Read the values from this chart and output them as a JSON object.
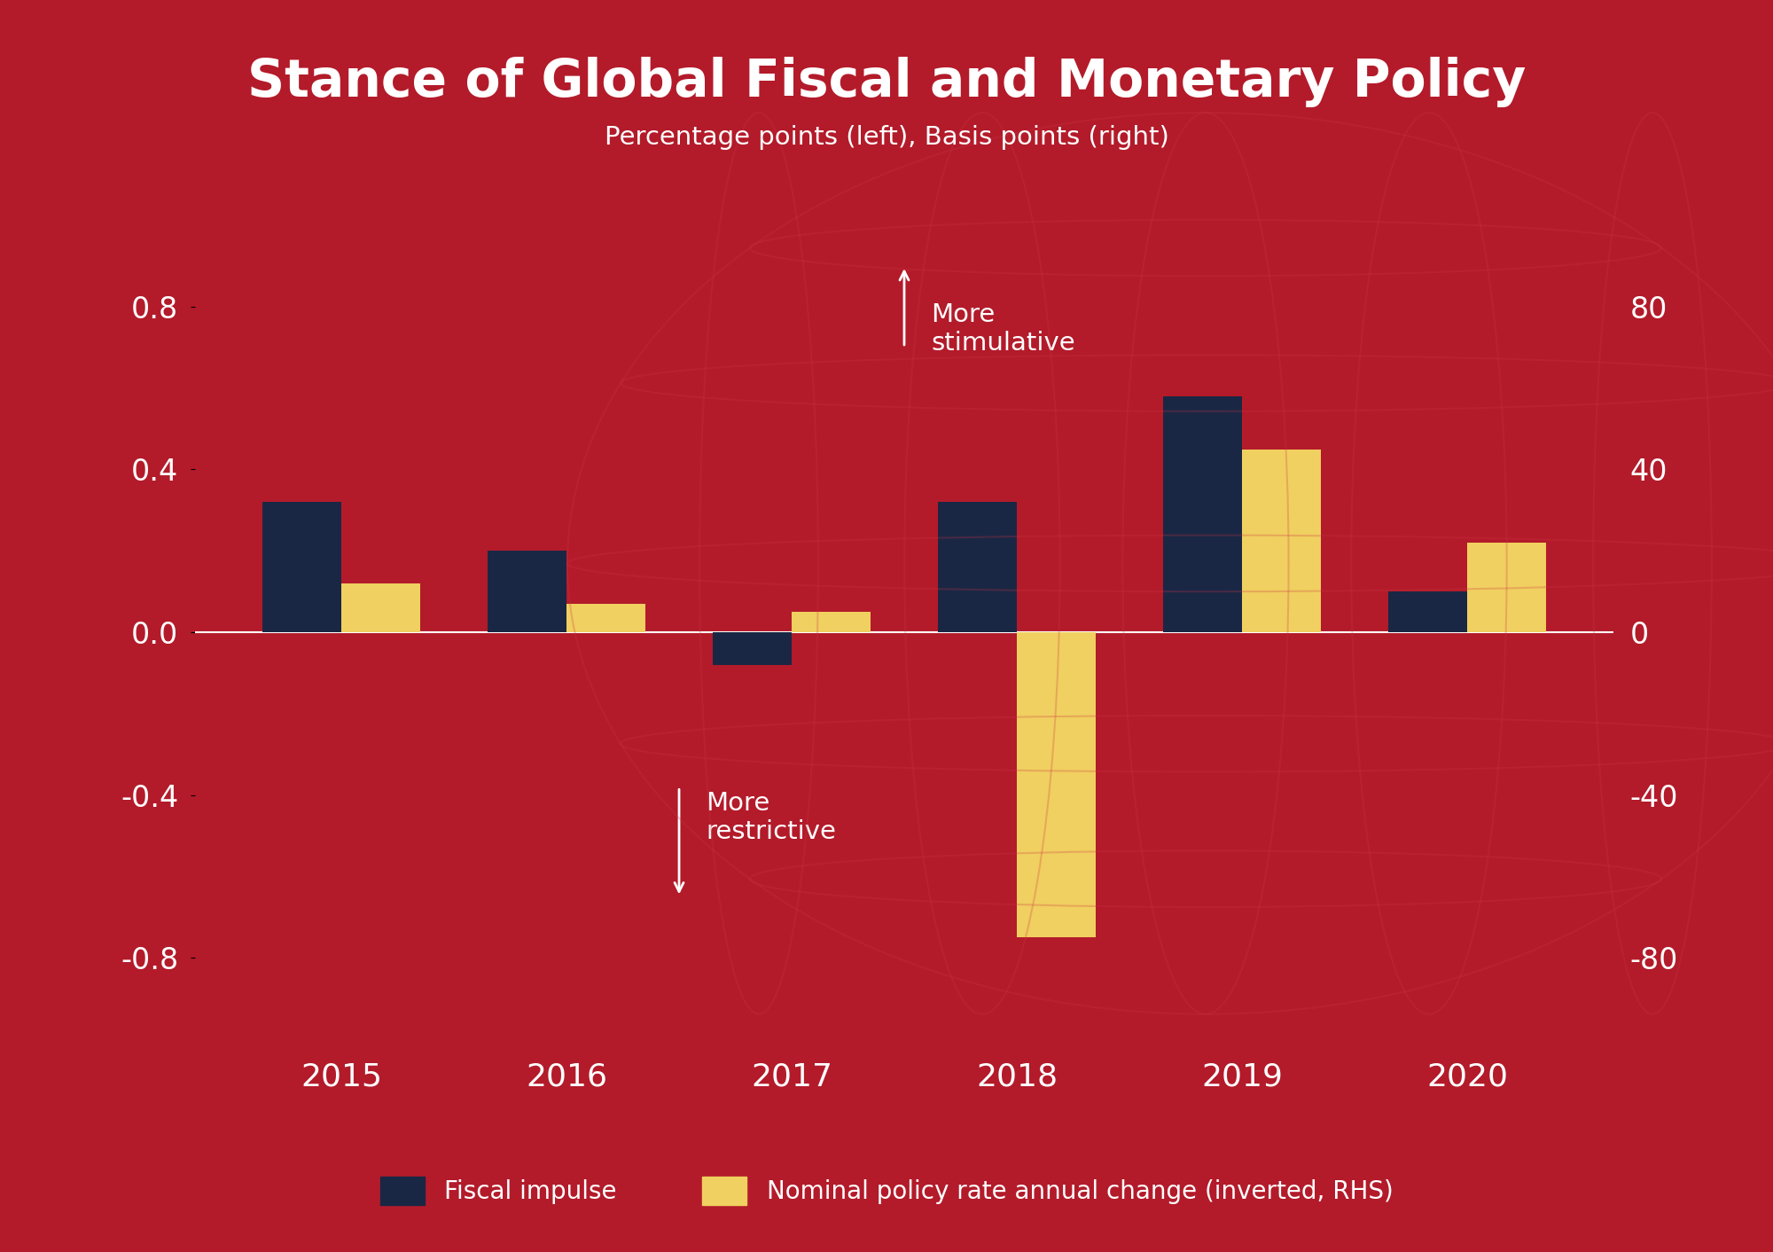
{
  "title": "Stance of Global Fiscal and Monetary Policy",
  "subtitle": "Percentage points (left), Basis points (right)",
  "categories": [
    "2015",
    "2016",
    "2017",
    "2018",
    "2019",
    "2020"
  ],
  "fiscal_impulse": [
    0.32,
    0.2,
    -0.08,
    0.32,
    0.58,
    0.1
  ],
  "monetary_rhs": [
    12,
    7,
    5,
    -75,
    45,
    22
  ],
  "fiscal_color": "#1a2744",
  "monetary_color": "#f0d060",
  "background_color": "#b31b2a",
  "text_color": "#ffffff",
  "ylim_left": [
    -1.0,
    1.0
  ],
  "ylim_right": [
    -100,
    100
  ],
  "yticks_left": [
    -0.8,
    -0.4,
    0.0,
    0.4,
    0.8
  ],
  "yticks_right": [
    -80,
    -40,
    0,
    40,
    80
  ],
  "legend_fiscal": "Fiscal impulse",
  "legend_monetary": "Nominal policy rate annual change (inverted, RHS)",
  "bar_width": 0.35,
  "annotation_more_stimulative": "More\nstimulative",
  "annotation_more_restrictive": "More\nrestrictive",
  "globe_line_color": "#cc3344",
  "globe_alpha": 0.25,
  "globe_lw": 1.5
}
